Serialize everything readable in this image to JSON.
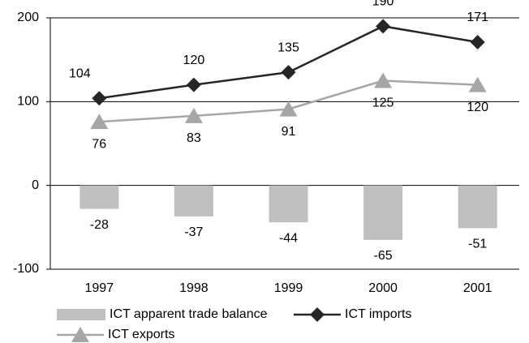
{
  "chart_data": {
    "type": "bar_line",
    "categories": [
      "1997",
      "1998",
      "1999",
      "2000",
      "2001"
    ],
    "series": [
      {
        "name": "ICT apparent trade balance",
        "type": "bar",
        "color": "#bfbfbf",
        "values": [
          -28,
          -37,
          -44,
          -65,
          -51
        ]
      },
      {
        "name": "ICT imports",
        "type": "line",
        "marker": "diamond",
        "color": "#262626",
        "values": [
          104,
          120,
          135,
          190,
          171
        ]
      },
      {
        "name": "ICT exports",
        "type": "line",
        "marker": "triangle",
        "color": "#a6a6a6",
        "values": [
          76,
          83,
          91,
          125,
          120
        ]
      }
    ],
    "ylim": [
      -100,
      200
    ],
    "yticks": [
      -100,
      0,
      100,
      200
    ],
    "grid": true,
    "legend": "bottom"
  }
}
